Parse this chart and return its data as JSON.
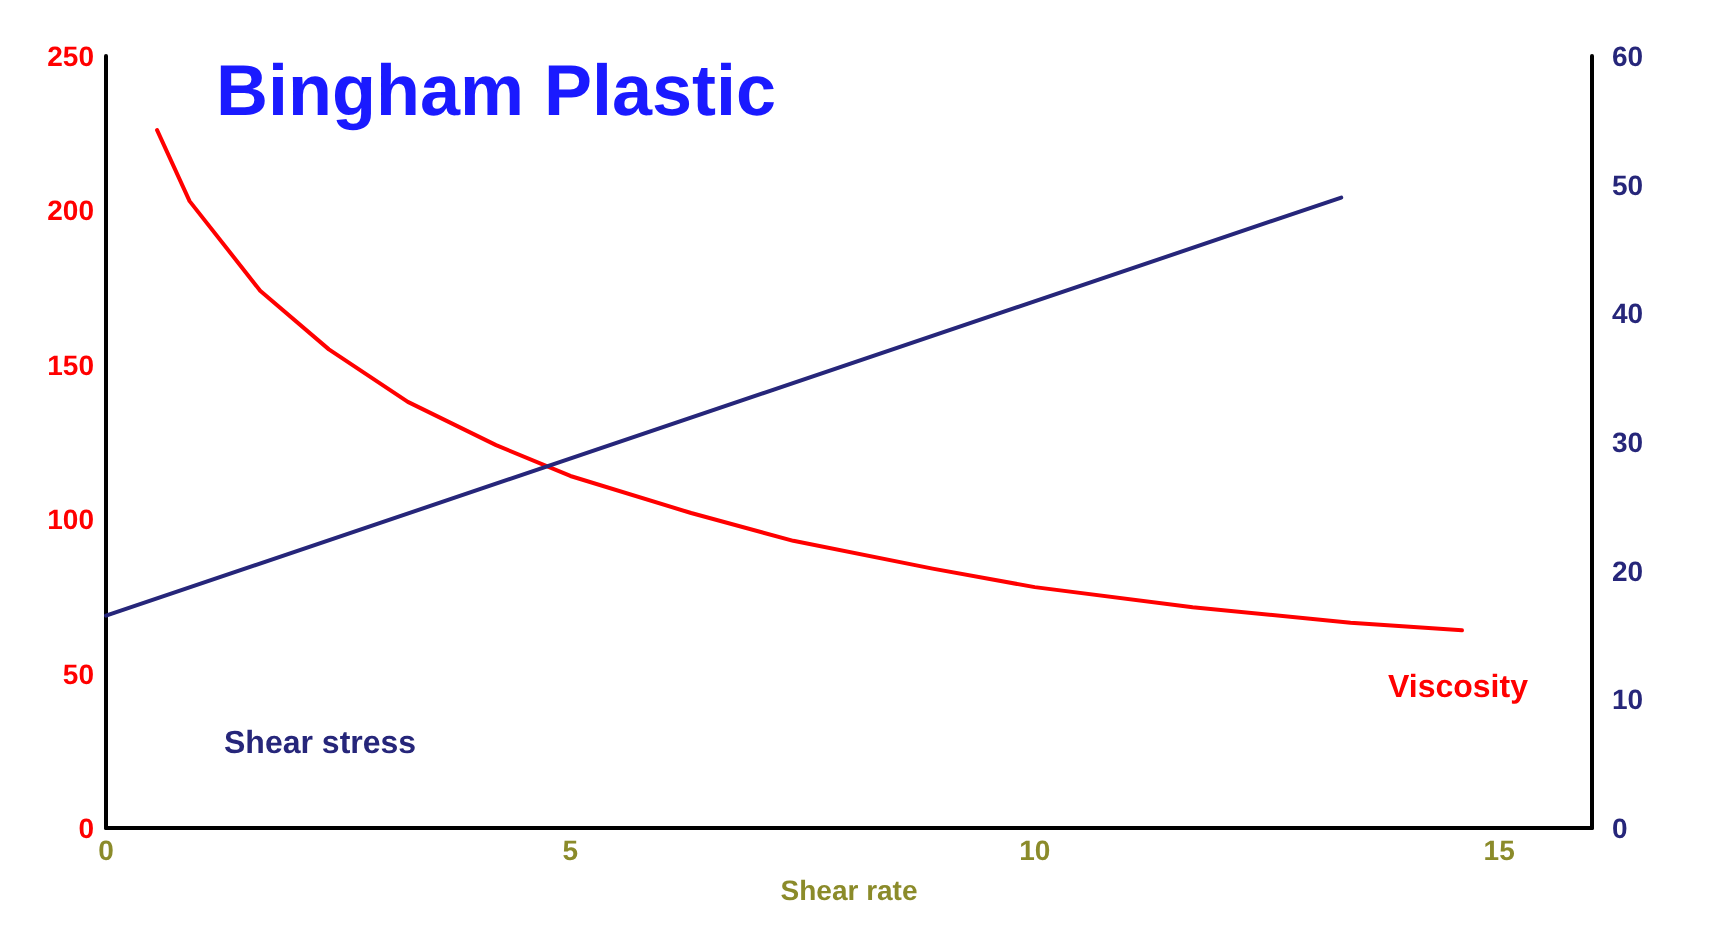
{
  "chart_data": {
    "type": "line",
    "title": "Bingham Plastic",
    "xlabel": "Shear rate",
    "xlim": [
      0,
      16
    ],
    "xticks": [
      0,
      5,
      10,
      15
    ],
    "ylim": [
      0,
      250
    ],
    "yticks": [
      0,
      50,
      100,
      150,
      200,
      250
    ],
    "y2lim": [
      0,
      60
    ],
    "y2ticks": [
      0,
      10,
      20,
      30,
      40,
      50,
      60
    ],
    "grid": false,
    "legend": false,
    "marker": "none",
    "line_style": "solid",
    "series": [
      {
        "name": "Viscosity",
        "color": "#ff0000",
        "axis": "y",
        "x": [
          0.55,
          0.9,
          1.66,
          2.4,
          3.25,
          4.2,
          5.0,
          6.3,
          7.4,
          8.9,
          10,
          11.7,
          13.4,
          14.6
        ],
        "values": [
          226,
          203,
          174,
          155,
          138,
          124,
          114,
          102,
          93,
          84,
          78,
          71.5,
          66.5,
          64
        ]
      },
      {
        "name": "Shear stress",
        "color": "#26267a",
        "axis": "y2",
        "x": [
          0,
          13.3
        ],
        "values": [
          16.5,
          49
        ]
      }
    ]
  }
}
